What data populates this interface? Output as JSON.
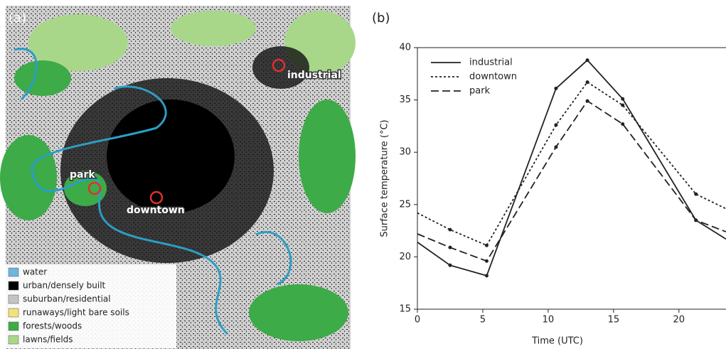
{
  "panel_a": {
    "label": "(a)",
    "legend": [
      {
        "label": "water",
        "color": "#6cb6e0"
      },
      {
        "label": "urban/densely built",
        "color": "#000000"
      },
      {
        "label": "suburban/residential",
        "color": "#c4c4c4"
      },
      {
        "label": "runaways/light bare soils",
        "color": "#f3e27a"
      },
      {
        "label": "forests/woods",
        "color": "#3dab47"
      },
      {
        "label": "lawns/fields",
        "color": "#a8d78a"
      }
    ],
    "sites": [
      "industrial",
      "park",
      "downtown"
    ]
  },
  "chart_data": {
    "type": "line",
    "panel_label": "(b)",
    "x_label": "Time (UTC)",
    "y_label": "Surface temperature (°C)",
    "x": [
      0,
      2.5,
      5.3,
      10.6,
      13,
      15.7,
      21.3,
      23.6
    ],
    "series": [
      {
        "name": "industrial",
        "color": "#222222",
        "dash": "none",
        "values": [
          21.4,
          19.2,
          18.2,
          36.1,
          38.8,
          35.1,
          23.5,
          21.7
        ]
      },
      {
        "name": "downtown",
        "color": "#222222",
        "dash": "3,3",
        "values": [
          24.2,
          22.6,
          21.1,
          32.6,
          36.7,
          34.5,
          26.0,
          24.6
        ]
      },
      {
        "name": "park",
        "color": "#222222",
        "dash": "11,5",
        "values": [
          22.2,
          20.9,
          19.6,
          30.5,
          34.9,
          32.7,
          23.5,
          22.4
        ]
      }
    ],
    "xlim": [
      0,
      23.6
    ],
    "xticks": [
      0,
      5,
      10,
      15,
      20
    ],
    "ylim": [
      15,
      40
    ],
    "yticks": [
      15,
      20,
      25,
      30,
      35,
      40
    ],
    "legend": "upper left"
  }
}
